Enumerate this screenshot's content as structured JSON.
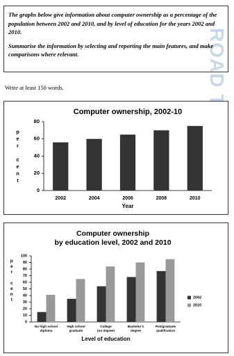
{
  "prompt": {
    "paragraphs": [
      "The graphs below give information about computer ownership as a percentage of the population between 2002 and 2010, and by level of education for the years 2002 and 2010.",
      "Summarise the information by selecting and reporting the main features, and make comparisons where relevant."
    ]
  },
  "instruction": "Write at least 150 words.",
  "watermark": "ROAD TO IE",
  "chart_data": [
    {
      "type": "bar",
      "title": "Computer ownership, 2002-10",
      "x_label": "Year",
      "y_label": "per cent",
      "categories": [
        "2002",
        "2004",
        "2006",
        "2008",
        "2010"
      ],
      "values": [
        56,
        60,
        65,
        70,
        75
      ],
      "color": "#333333",
      "ylim": [
        0,
        80
      ],
      "yticks": [
        0,
        20,
        40,
        60,
        80
      ],
      "grid": false
    },
    {
      "type": "grouped-bar",
      "title": [
        "Computer ownership",
        "by education level, 2002 and 2010"
      ],
      "x_label": "Level of education",
      "y_label": "per cent",
      "categories": [
        [
          "No high school",
          "diploma"
        ],
        [
          "High school",
          "graduate"
        ],
        [
          "College",
          "(no degree)"
        ],
        [
          "Bachelor's",
          "degree"
        ],
        [
          "Postgraduate",
          "qualification"
        ]
      ],
      "series": [
        {
          "name": "2002",
          "color": "#333333",
          "values": [
            15,
            35,
            54,
            68,
            77
          ]
        },
        {
          "name": "2010",
          "color": "#999999",
          "values": [
            41,
            65,
            84,
            90,
            95
          ]
        }
      ],
      "ylim": [
        0,
        100
      ],
      "yticks": [
        0,
        10,
        20,
        30,
        40,
        50,
        60,
        70,
        80,
        90,
        100
      ],
      "grid": false,
      "legend": "right"
    }
  ]
}
